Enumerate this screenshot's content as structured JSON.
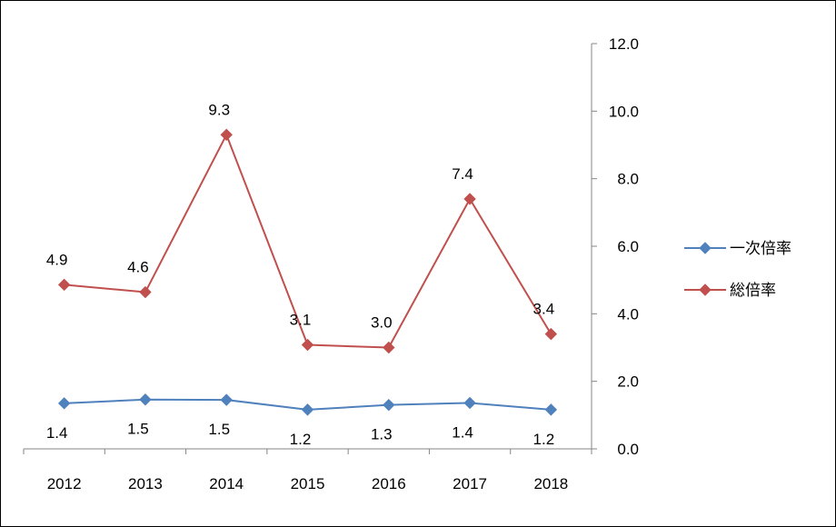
{
  "chart_data": {
    "type": "line",
    "title": "",
    "xlabel": "",
    "ylabel": "",
    "categories": [
      "2012",
      "2013",
      "2014",
      "2015",
      "2016",
      "2017",
      "2018"
    ],
    "ylim": [
      0,
      12
    ],
    "yticks": [
      "0.0",
      "2.0",
      "4.0",
      "6.0",
      "8.0",
      "10.0",
      "12.0"
    ],
    "y_axis_side": "right",
    "grid": false,
    "legend_position": "right",
    "series": [
      {
        "name": "一次倍率",
        "values": [
          1.35,
          1.46,
          1.45,
          1.16,
          1.3,
          1.36,
          1.16
        ],
        "labels": [
          "1.4",
          "1.5",
          "1.5",
          "1.2",
          "1.3",
          "1.4",
          "1.2"
        ],
        "color": "#4f81bd",
        "label_position": "below"
      },
      {
        "name": "総倍率",
        "values": [
          4.86,
          4.64,
          9.3,
          3.08,
          3.0,
          7.4,
          3.4
        ],
        "labels": [
          "4.9",
          "4.6",
          "9.3",
          "3.1",
          "3.0",
          "7.4",
          "3.4"
        ],
        "color": "#c0504d",
        "label_position": "above"
      }
    ]
  }
}
